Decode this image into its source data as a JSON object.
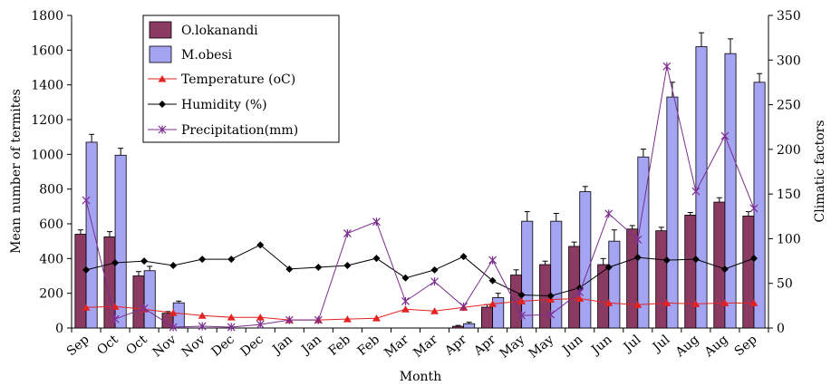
{
  "chart_data": {
    "type": "bar",
    "xlabel": "Month",
    "ylabel_left": "Mean number of termites",
    "ylabel_right": "Climatic factors",
    "ylim_left": [
      0,
      1800
    ],
    "ylim_right": [
      0,
      350
    ],
    "yticks_left": [
      "0",
      "200",
      "400",
      "600",
      "800",
      "1000",
      "1200",
      "1400",
      "1600",
      "1800"
    ],
    "yticks_right": [
      "0",
      "50",
      "100",
      "150",
      "200",
      "250",
      "300",
      "350"
    ],
    "categories": [
      "Sep",
      "Oct",
      "Oct",
      "Nov",
      "Nov",
      "Dec",
      "Dec",
      "Jan",
      "Jan",
      "Feb",
      "Feb",
      "Mar",
      "Mar",
      "Apr",
      "Apr",
      "May",
      "May",
      "Jun",
      "Jun",
      "Jul",
      "Jul",
      "Aug",
      "Aug",
      "Sep"
    ],
    "bar_series": [
      {
        "name": "O.lokanandi",
        "color": "#8b3a62",
        "values": [
          540,
          525,
          300,
          85,
          0,
          0,
          0,
          0,
          0,
          0,
          0,
          0,
          0,
          10,
          120,
          305,
          365,
          470,
          365,
          570,
          560,
          650,
          725,
          645
        ],
        "errors": [
          25,
          30,
          25,
          10,
          0,
          0,
          0,
          0,
          0,
          0,
          0,
          0,
          0,
          5,
          15,
          30,
          20,
          25,
          35,
          20,
          20,
          15,
          25,
          25
        ]
      },
      {
        "name": "M.obesi",
        "color": "#a4a4f2",
        "values": [
          1070,
          995,
          330,
          145,
          0,
          0,
          0,
          0,
          0,
          0,
          0,
          0,
          0,
          25,
          175,
          615,
          615,
          785,
          500,
          985,
          1330,
          1620,
          1580,
          1415
        ],
        "errors": [
          45,
          40,
          25,
          10,
          0,
          0,
          0,
          0,
          0,
          0,
          0,
          0,
          0,
          8,
          25,
          55,
          45,
          30,
          65,
          45,
          85,
          80,
          85,
          50
        ]
      }
    ],
    "line_series": [
      {
        "name": "Temperature (oC)",
        "color": "#e32222",
        "marker": "triangle",
        "values": [
          23,
          24,
          21,
          17,
          14,
          12,
          12,
          9,
          9,
          10,
          11,
          21,
          19,
          23,
          27,
          30,
          32,
          33,
          28,
          26,
          28,
          27,
          28,
          28
        ]
      },
      {
        "name": "Humidity (%)",
        "color": "#000000",
        "marker": "diamond",
        "values": [
          65,
          73,
          75,
          70,
          77,
          77,
          93,
          66,
          68,
          70,
          78,
          56,
          65,
          80,
          53,
          37,
          36,
          45,
          68,
          79,
          76,
          77,
          66,
          78
        ]
      },
      {
        "name": "Precipitation(mm)",
        "color": "#7a2d8e",
        "marker": "star",
        "values": [
          143,
          10,
          22,
          1,
          2,
          1,
          4,
          9,
          9,
          106,
          119,
          30,
          52,
          24,
          76,
          14,
          15,
          40,
          128,
          99,
          293,
          153,
          215,
          134
        ]
      }
    ],
    "legend": {
      "placement": "top-left",
      "entries": [
        "O.lokanandi",
        "M.obesi",
        "Temperature (oC)",
        "Humidity (%)",
        "Precipitation(mm)"
      ]
    }
  }
}
